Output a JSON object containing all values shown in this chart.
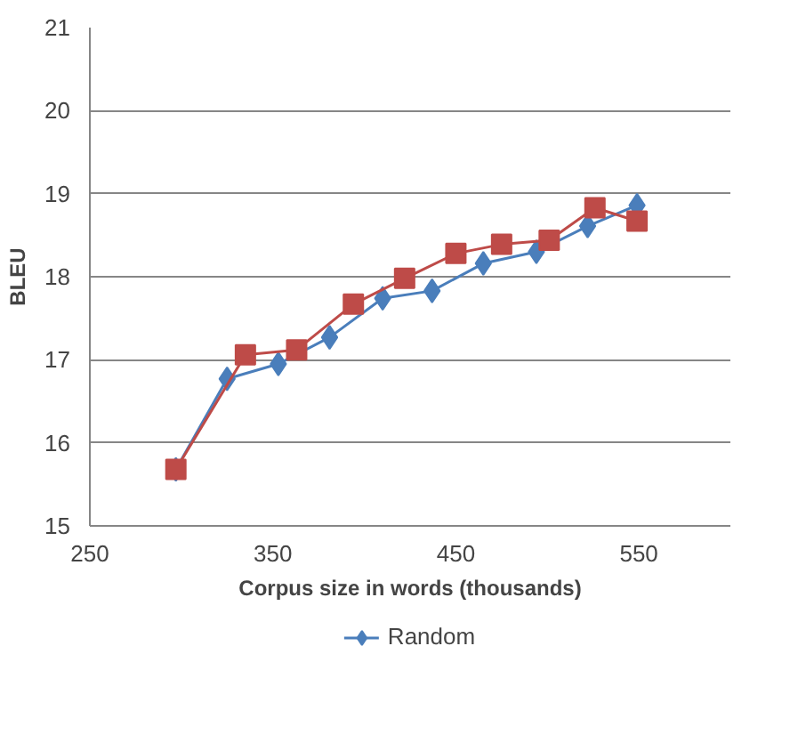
{
  "chart_data": {
    "type": "line",
    "xlabel": "Corpus size in words (thousands)",
    "ylabel": "BLEU",
    "xlim": [
      250,
      600
    ],
    "xticks": [
      250,
      350,
      450,
      550
    ],
    "ylim": [
      15,
      21
    ],
    "yticks": [
      15,
      16,
      17,
      18,
      19,
      20,
      21
    ],
    "grid": "y",
    "legend": "bottom",
    "series": [
      {
        "name": "Random",
        "color": "#4a7ebb",
        "marker": "diamond",
        "x": [
          297,
          325,
          353,
          381,
          410,
          437,
          465,
          494,
          522,
          549
        ],
        "values": [
          15.68,
          16.77,
          16.95,
          17.27,
          17.74,
          17.83,
          18.16,
          18.3,
          18.61,
          18.86
        ]
      },
      {
        "color": "#be4b48",
        "marker": "square",
        "x": [
          297,
          335,
          363,
          394,
          422,
          450,
          475,
          501,
          526,
          549
        ],
        "values": [
          15.68,
          17.06,
          17.12,
          17.67,
          17.98,
          18.28,
          18.39,
          18.44,
          18.83,
          18.67
        ]
      }
    ]
  }
}
